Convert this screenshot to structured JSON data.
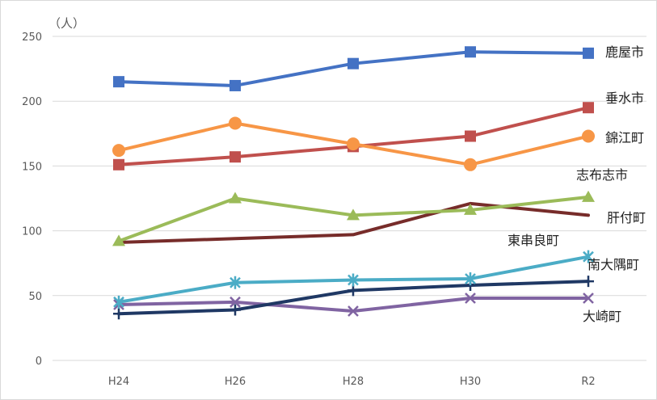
{
  "chart_data": {
    "type": "line",
    "ylabel": "（人）",
    "categories": [
      "H24",
      "H26",
      "H28",
      "H30",
      "R2"
    ],
    "ylim": [
      0,
      250
    ],
    "yticks": [
      0,
      50,
      100,
      150,
      200,
      250
    ],
    "grid": true,
    "series": [
      {
        "name": "鹿屋市",
        "values": [
          215,
          212,
          229,
          238,
          237
        ],
        "color": "#4472c4",
        "marker": "square"
      },
      {
        "name": "垂水市",
        "values": [
          151,
          157,
          165,
          173,
          195
        ],
        "color": "#c0504d",
        "marker": "square"
      },
      {
        "name": "錦江町",
        "values": [
          162,
          183,
          167,
          151,
          173
        ],
        "color": "#f79646",
        "marker": "circle"
      },
      {
        "name": "志布志市",
        "values": [
          92,
          125,
          112,
          116,
          126
        ],
        "color": "#9bbb59",
        "marker": "triangle"
      },
      {
        "name": "肝付町",
        "values": [
          91,
          94,
          97,
          121,
          112
        ],
        "color": "#772c2a",
        "marker": "none"
      },
      {
        "name": "東串良町",
        "values": [
          36,
          39,
          54,
          58,
          61
        ],
        "color": "#1f3864",
        "marker": "plus"
      },
      {
        "name": "南大隅町",
        "values": [
          45,
          60,
          62,
          63,
          80
        ],
        "color": "#4bacc6",
        "marker": "star"
      },
      {
        "name": "大崎町",
        "values": [
          43,
          45,
          38,
          48,
          48
        ],
        "color": "#8064a2",
        "marker": "x"
      }
    ]
  }
}
